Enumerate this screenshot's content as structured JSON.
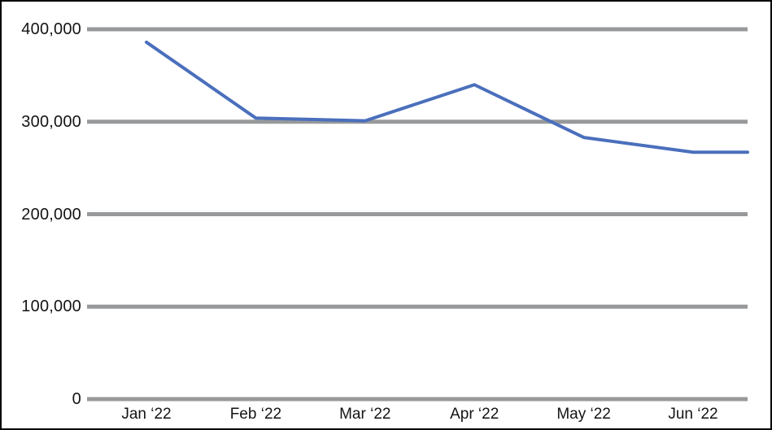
{
  "chart_data": {
    "type": "line",
    "title": "",
    "xlabel": "",
    "ylabel": "",
    "categories": [
      "Jan ‘22",
      "Feb ‘22",
      "Mar ‘22",
      "Apr ‘22",
      "May ‘22",
      "Jun ‘22"
    ],
    "series": [
      {
        "name": "series-1",
        "values": [
          386000,
          304000,
          301000,
          340000,
          283000,
          267000
        ]
      }
    ],
    "ylim": [
      0,
      400000
    ],
    "yticks": [
      0,
      100000,
      200000,
      300000,
      400000
    ],
    "ytick_labels": [
      "0",
      "100,000",
      "200,000",
      "300,000",
      "400,000"
    ],
    "grid": "horizontal-only",
    "legend_position": "none",
    "extend_last_value_to_right_edge": true,
    "colors": {
      "line": "#4a6fbc",
      "gridline": "#98999b",
      "text": "#141414",
      "frame_border": "#000000",
      "background": "#ffffff"
    }
  }
}
